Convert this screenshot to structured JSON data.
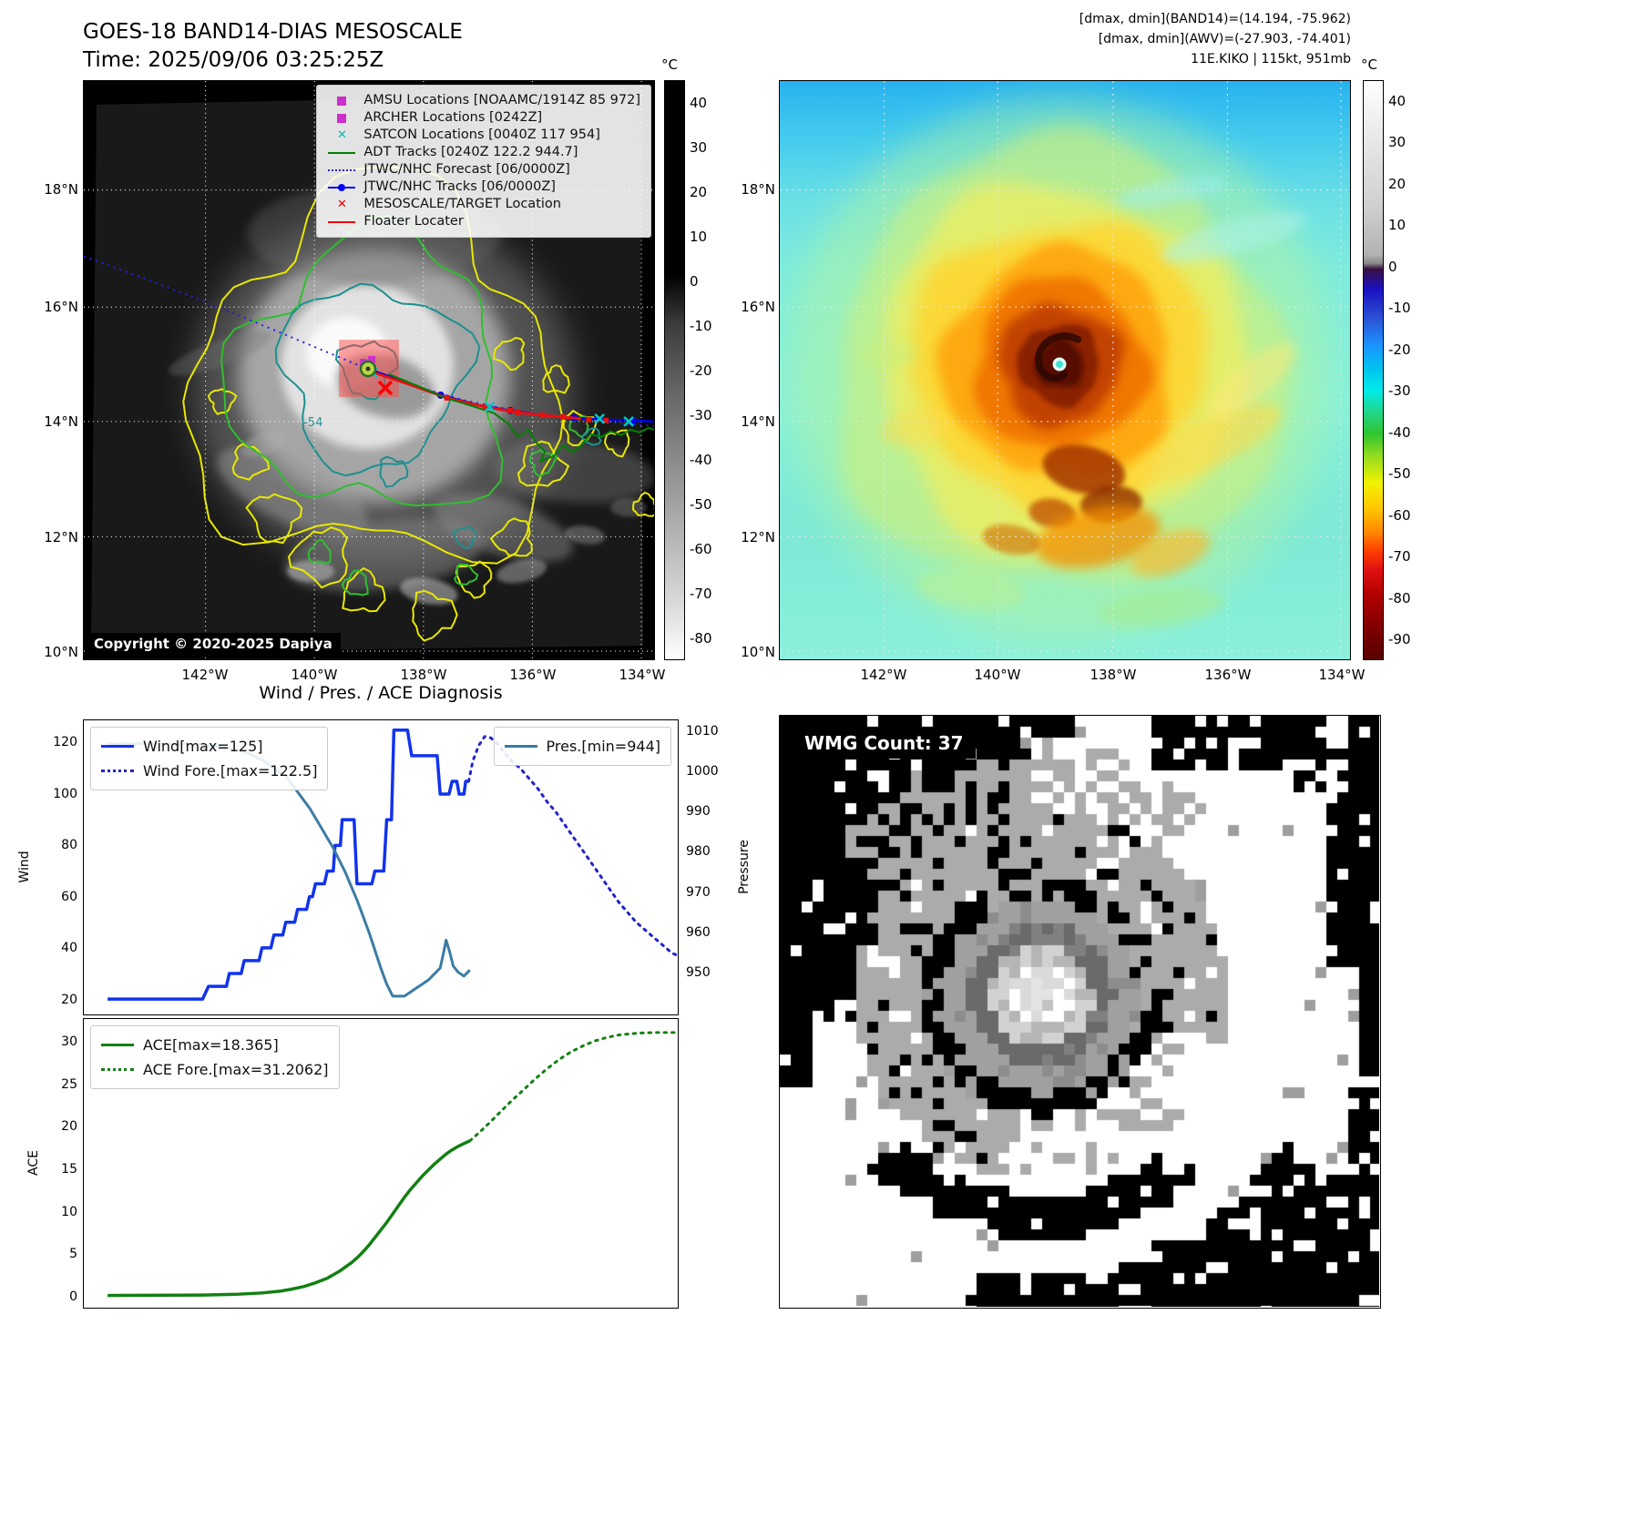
{
  "band14": {
    "title": "GOES-18 BAND14-DIAS MESOSCALE",
    "time": "Time: 2025/09/06 03:25:25Z",
    "copyright": "Copyright © 2020-2025 Dapiya",
    "contour_label": "-54",
    "colorbar_unit": "°C",
    "colorbar_ticks": [
      "40",
      "30",
      "20",
      "10",
      "0",
      "-10",
      "-20",
      "-30",
      "-40",
      "-50",
      "-60",
      "-70",
      "-80"
    ],
    "lat_ticks": [
      "18°N",
      "16°N",
      "14°N",
      "12°N",
      "10°N"
    ],
    "lon_ticks": [
      "142°W",
      "140°W",
      "138°W",
      "136°W",
      "134°W"
    ],
    "legend": [
      {
        "label": "AMSU Locations [NOAAMC/1914Z 85 972]",
        "marker": "square",
        "color": "#cc2fcc"
      },
      {
        "label": "ARCHER Locations [0242Z]",
        "marker": "square",
        "color": "#cc2fcc"
      },
      {
        "label": "SATCON Locations [0040Z 117 954]",
        "marker": "x",
        "color": "#00b8b8"
      },
      {
        "label": "ADT Tracks [0240Z 122.2 944.7]",
        "marker": "line",
        "color": "#008000"
      },
      {
        "label": "JTWC/NHC Forecast [06/0000Z]",
        "marker": "dotted",
        "color": "#2222dd"
      },
      {
        "label": "JTWC/NHC Tracks [06/0000Z]",
        "marker": "line-dot",
        "color": "#0000ee"
      },
      {
        "label": "MESOSCALE/TARGET Location",
        "marker": "x",
        "color": "#ee0000"
      },
      {
        "label": "Floater Locater",
        "marker": "line",
        "color": "#ee0000"
      }
    ]
  },
  "enhanced": {
    "header_lines": [
      "[dmax, dmin](BAND14)=(14.194, -75.962)",
      "[dmax, dmin](AWV)=(-27.903, -74.401)",
      "11E.KIKO | 115kt, 951mb"
    ],
    "colorbar_unit": "°C",
    "colorbar_ticks": [
      "40",
      "30",
      "20",
      "10",
      "0",
      "-10",
      "-20",
      "-30",
      "-40",
      "-50",
      "-60",
      "-70",
      "-80",
      "-90"
    ],
    "lat_ticks": [
      "18°N",
      "16°N",
      "14°N",
      "12°N",
      "10°N"
    ],
    "lon_ticks": [
      "142°W",
      "140°W",
      "138°W",
      "136°W",
      "134°W"
    ]
  },
  "diagnosis": {
    "title": "Wind / Pres. / ACE Diagnosis"
  },
  "wmg": {
    "label": "WMG Count: 37"
  },
  "chart_data": [
    {
      "type": "line",
      "title": "Wind / Pres. / ACE Diagnosis",
      "subplot": "wind-pressure",
      "x_range": [
        0,
        100
      ],
      "grid": false,
      "axes": {
        "left": {
          "label": "Wind",
          "ticks": [
            20,
            40,
            60,
            80,
            100,
            120
          ],
          "range": [
            14,
            128.8
          ]
        },
        "right": {
          "label": "Pressure",
          "ticks": [
            950,
            960,
            970,
            980,
            990,
            1000,
            1010
          ],
          "range": [
            939.4,
            1012.9
          ]
        }
      },
      "series": [
        {
          "name": "Wind[max=125]",
          "axis": "left",
          "style": "solid",
          "color": "#1133ee",
          "width": 3.5,
          "legend": "left",
          "points": [
            [
              4,
              20
            ],
            [
              20,
              20
            ],
            [
              21,
              25
            ],
            [
              24,
              25
            ],
            [
              24.5,
              30
            ],
            [
              26.5,
              30
            ],
            [
              27,
              35
            ],
            [
              29.5,
              35
            ],
            [
              30,
              40
            ],
            [
              31.5,
              40
            ],
            [
              32,
              45
            ],
            [
              33.5,
              45
            ],
            [
              34,
              50
            ],
            [
              35.5,
              50
            ],
            [
              36,
              55
            ],
            [
              37.5,
              55
            ],
            [
              38,
              60
            ],
            [
              38.5,
              60
            ],
            [
              39,
              65
            ],
            [
              40.5,
              65
            ],
            [
              41,
              70
            ],
            [
              42,
              70
            ],
            [
              42.3,
              80
            ],
            [
              43.2,
              80
            ],
            [
              43.5,
              90
            ],
            [
              45.5,
              90
            ],
            [
              46,
              65
            ],
            [
              48.5,
              65
            ],
            [
              49,
              70
            ],
            [
              50.5,
              70
            ],
            [
              51,
              90
            ],
            [
              51.8,
              90
            ],
            [
              52.2,
              125
            ],
            [
              54.5,
              125
            ],
            [
              55.2,
              115
            ],
            [
              59.5,
              115
            ],
            [
              60,
              100
            ],
            [
              61.5,
              100
            ],
            [
              62,
              105
            ],
            [
              62.8,
              105
            ],
            [
              63.2,
              100
            ],
            [
              64,
              100
            ],
            [
              64.3,
              105
            ],
            [
              64.8,
              105
            ]
          ]
        },
        {
          "name": "Wind Fore.[max=122.5]",
          "axis": "left",
          "style": "dotted",
          "color": "#2222cc",
          "width": 3,
          "legend": "left",
          "points": [
            [
              64.8,
              105
            ],
            [
              65.5,
              113
            ],
            [
              66.5,
              119
            ],
            [
              67.5,
              122.5
            ],
            [
              68.5,
              122
            ],
            [
              69.5,
              120
            ],
            [
              70.5,
              117
            ],
            [
              72,
              113
            ],
            [
              73.5,
              110
            ],
            [
              75,
              106
            ],
            [
              76.5,
              102
            ],
            [
              78,
              97
            ],
            [
              79.5,
              93
            ],
            [
              81,
              88
            ],
            [
              82.5,
              83
            ],
            [
              84,
              78
            ],
            [
              85.5,
              73
            ],
            [
              87,
              68
            ],
            [
              88.5,
              63
            ],
            [
              90,
              58
            ],
            [
              91.5,
              54
            ],
            [
              93,
              50
            ],
            [
              94.5,
              47
            ],
            [
              96,
              44
            ],
            [
              97,
              42
            ],
            [
              98,
              40
            ],
            [
              99,
              38
            ],
            [
              100,
              37
            ]
          ]
        },
        {
          "name": "Pres.[min=944]",
          "axis": "right",
          "style": "solid",
          "color": "#3a7ca5",
          "width": 3,
          "legend": "right",
          "points": [
            [
              4,
              1007
            ],
            [
              18,
              1007
            ],
            [
              22,
              1006.5
            ],
            [
              26,
              1005.5
            ],
            [
              28,
              1004.5
            ],
            [
              30,
              1003
            ],
            [
              32,
              1001
            ],
            [
              34,
              999
            ],
            [
              35,
              997
            ],
            [
              36,
              995
            ],
            [
              37,
              993
            ],
            [
              38,
              991
            ],
            [
              39,
              988.5
            ],
            [
              40,
              986
            ],
            [
              41,
              983.5
            ],
            [
              42,
              981
            ],
            [
              43,
              978
            ],
            [
              44,
              975
            ],
            [
              45,
              971.5
            ],
            [
              46,
              968
            ],
            [
              47,
              964
            ],
            [
              48,
              960
            ],
            [
              49,
              955.5
            ],
            [
              50,
              951
            ],
            [
              51,
              947
            ],
            [
              52,
              944
            ],
            [
              54,
              944
            ],
            [
              55,
              945
            ],
            [
              56,
              946
            ],
            [
              57,
              947
            ],
            [
              58,
              948
            ],
            [
              59,
              949.5
            ],
            [
              60,
              951
            ],
            [
              60.6,
              955
            ],
            [
              61,
              958
            ],
            [
              61.6,
              955
            ],
            [
              62.2,
              951.5
            ],
            [
              63,
              950
            ],
            [
              64,
              949
            ],
            [
              65,
              950.5
            ]
          ]
        }
      ]
    },
    {
      "type": "line",
      "title": "",
      "subplot": "ace",
      "x_range": [
        0,
        100
      ],
      "grid": false,
      "axes": {
        "left": {
          "label": "ACE",
          "ticks": [
            0,
            5,
            10,
            15,
            20,
            25,
            30
          ],
          "range": [
            -1.4,
            32.8
          ]
        }
      },
      "series": [
        {
          "name": "ACE[max=18.365]",
          "axis": "left",
          "style": "solid",
          "color": "#128012",
          "width": 3.5,
          "legend": "left",
          "points": [
            [
              4,
              0.05
            ],
            [
              20,
              0.1
            ],
            [
              26,
              0.2
            ],
            [
              30,
              0.35
            ],
            [
              33,
              0.55
            ],
            [
              35,
              0.8
            ],
            [
              37,
              1.1
            ],
            [
              39,
              1.55
            ],
            [
              41,
              2.1
            ],
            [
              43,
              2.9
            ],
            [
              45,
              3.9
            ],
            [
              46,
              4.5
            ],
            [
              47,
              5.2
            ],
            [
              48,
              6
            ],
            [
              49,
              6.9
            ],
            [
              50,
              7.8
            ],
            [
              51,
              8.7
            ],
            [
              52,
              9.7
            ],
            [
              53,
              10.7
            ],
            [
              54,
              11.7
            ],
            [
              55,
              12.6
            ],
            [
              56,
              13.4
            ],
            [
              57,
              14.2
            ],
            [
              58,
              14.9
            ],
            [
              59,
              15.6
            ],
            [
              60,
              16.2
            ],
            [
              61,
              16.8
            ],
            [
              62,
              17.3
            ],
            [
              63,
              17.7
            ],
            [
              64,
              18.05
            ],
            [
              65,
              18.365
            ]
          ]
        },
        {
          "name": "ACE Fore.[max=31.2062]",
          "axis": "left",
          "style": "dotted",
          "color": "#128012",
          "width": 3,
          "legend": "left",
          "points": [
            [
              65,
              18.365
            ],
            [
              66.5,
              19.3
            ],
            [
              68,
              20.3
            ],
            [
              70,
              21.7
            ],
            [
              72,
              23.1
            ],
            [
              74,
              24.4
            ],
            [
              76,
              25.7
            ],
            [
              78,
              26.9
            ],
            [
              80,
              28
            ],
            [
              82,
              28.9
            ],
            [
              84,
              29.6
            ],
            [
              86,
              30.2
            ],
            [
              88,
              30.6
            ],
            [
              90,
              30.9
            ],
            [
              92,
              31.05
            ],
            [
              94,
              31.15
            ],
            [
              96,
              31.2
            ],
            [
              98,
              31.2
            ],
            [
              100,
              31.2062
            ]
          ]
        }
      ]
    }
  ]
}
